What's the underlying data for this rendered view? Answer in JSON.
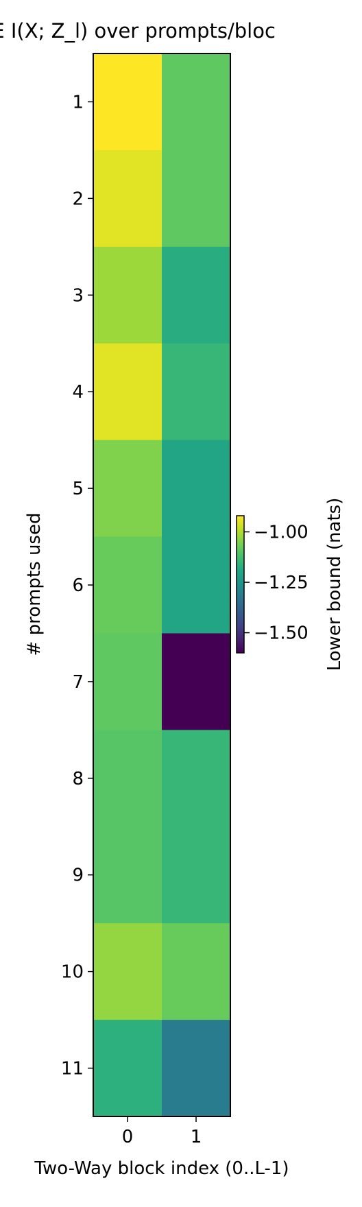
{
  "chart_data": {
    "type": "heatmap",
    "title": "CE  I(X; Z_l) over prompts/bloc",
    "xlabel": "Two-Way block index (0..L-1)",
    "ylabel": "# prompts used",
    "x_categories": [
      "0",
      "1"
    ],
    "y_categories": [
      "1",
      "2",
      "3",
      "4",
      "5",
      "6",
      "7",
      "8",
      "9",
      "10",
      "11"
    ],
    "values": [
      [
        -0.92,
        -1.09
      ],
      [
        -0.95,
        -1.09
      ],
      [
        -1.02,
        -1.18
      ],
      [
        -0.95,
        -1.15
      ],
      [
        -1.05,
        -1.2
      ],
      [
        -1.08,
        -1.2
      ],
      [
        -1.09,
        -1.6
      ],
      [
        -1.1,
        -1.15
      ],
      [
        -1.1,
        -1.15
      ],
      [
        -1.03,
        -1.08
      ],
      [
        -1.17,
        -1.32
      ]
    ],
    "colorbar": {
      "label": "Lower bound (nats)",
      "range": [
        -1.6,
        -0.92
      ],
      "ticks": [
        -1.0,
        -1.25,
        -1.5
      ],
      "tick_labels": [
        "−1.00",
        "−1.25",
        "−1.50"
      ],
      "colormap": "viridis"
    }
  }
}
